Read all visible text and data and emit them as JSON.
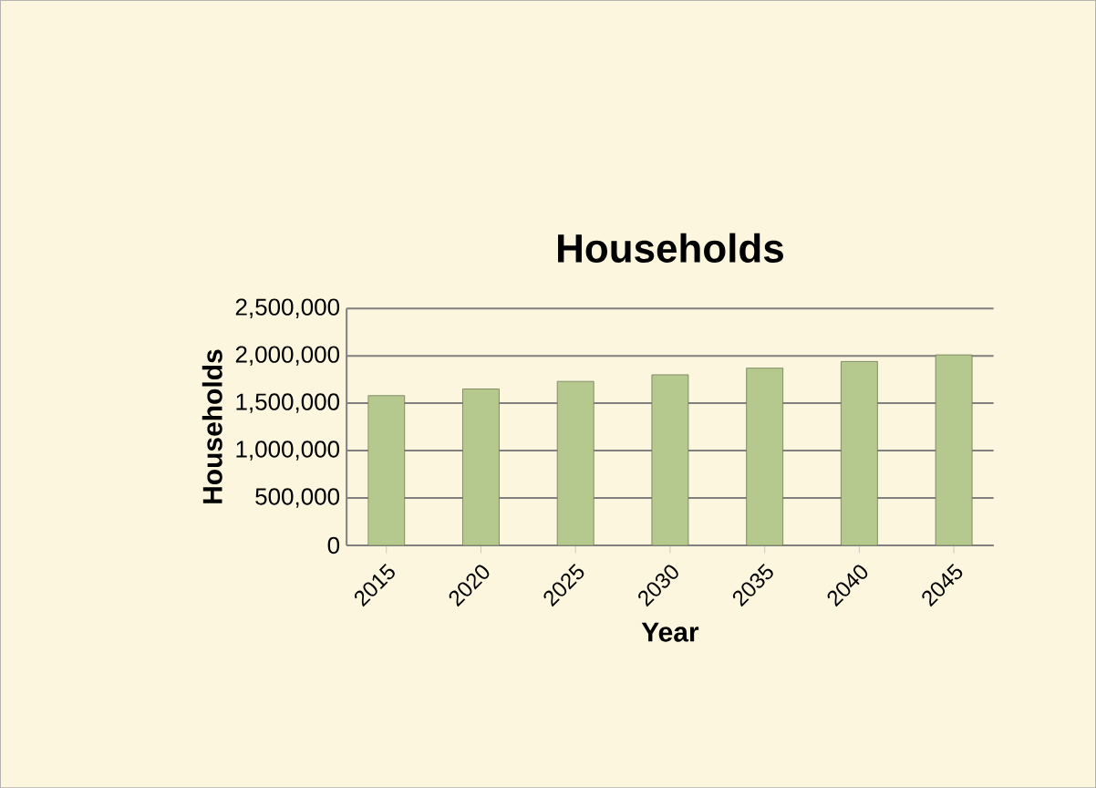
{
  "chart_data": {
    "type": "bar",
    "title": "Households",
    "xlabel": "Year",
    "ylabel": "Households",
    "categories": [
      "2015",
      "2020",
      "2025",
      "2030",
      "2035",
      "2040",
      "2045"
    ],
    "values": [
      1580000,
      1650000,
      1730000,
      1800000,
      1870000,
      1940000,
      2010000
    ],
    "color": "#b5c98e",
    "ylim": [
      0,
      2500000
    ],
    "yticks": [
      {
        "value": 0,
        "label": "0"
      },
      {
        "value": 500000,
        "label": "500,000"
      },
      {
        "value": 1000000,
        "label": "1,000,000"
      },
      {
        "value": 1500000,
        "label": "1,500,000"
      },
      {
        "value": 2000000,
        "label": "2,000,000"
      },
      {
        "value": 2500000,
        "label": "2,500,000"
      }
    ],
    "grid": "y"
  }
}
